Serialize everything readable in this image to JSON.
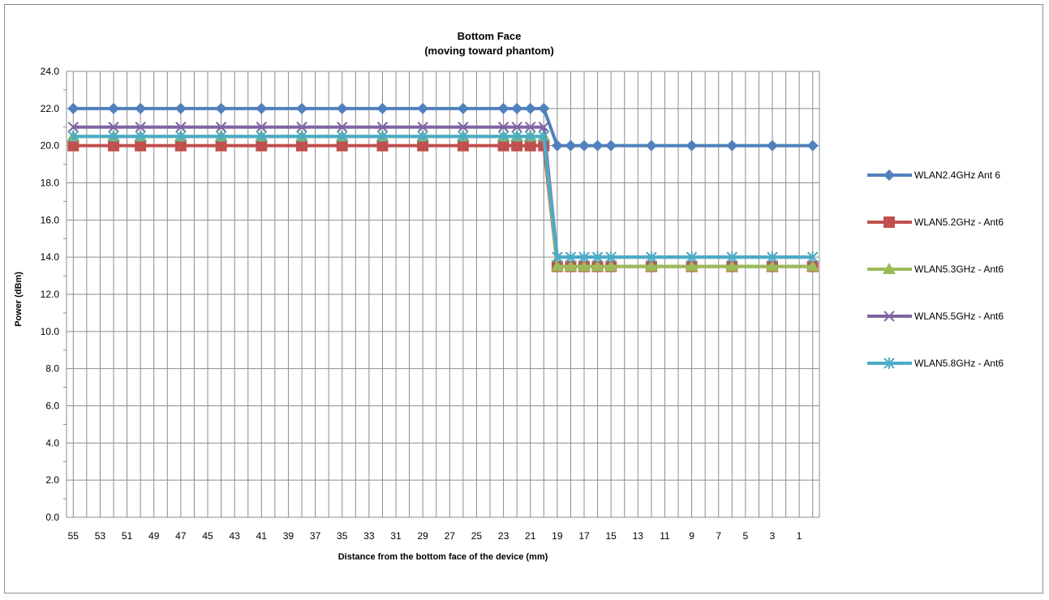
{
  "chart_data": {
    "type": "line",
    "title": "Bottom Face",
    "subtitle": "(moving toward phantom)",
    "xlabel": "Distance from the bottom face of the device (mm)",
    "ylabel": "Power (dBm)",
    "ylim": [
      0,
      24
    ],
    "y_ticks": [
      "0.0",
      "2.0",
      "4.0",
      "6.0",
      "8.0",
      "10.0",
      "12.0",
      "14.0",
      "16.0",
      "18.0",
      "20.0",
      "22.0",
      "24.0"
    ],
    "x_tick_labels": [
      "55",
      "53",
      "51",
      "49",
      "47",
      "45",
      "43",
      "41",
      "39",
      "37",
      "35",
      "33",
      "31",
      "29",
      "27",
      "25",
      "23",
      "21",
      "19",
      "17",
      "15",
      "13",
      "11",
      "9",
      "7",
      "5",
      "3",
      "1"
    ],
    "x": [
      55,
      52,
      50,
      47,
      44,
      41,
      38,
      35,
      32,
      29,
      26,
      23,
      22,
      21,
      20,
      19,
      18,
      17,
      16,
      15,
      12,
      9,
      6,
      3,
      0
    ],
    "grid": true,
    "legend_position": "right",
    "series": [
      {
        "name": "WLAN2.4GHz Ant 6",
        "color": "#4f81bd",
        "marker": "diamond",
        "values": [
          22,
          22,
          22,
          22,
          22,
          22,
          22,
          22,
          22,
          22,
          22,
          22,
          22,
          22,
          22,
          20,
          20,
          20,
          20,
          20,
          20,
          20,
          20,
          20,
          20
        ]
      },
      {
        "name": "WLAN5.2GHz - Ant6",
        "color": "#c0504d",
        "marker": "square",
        "values": [
          20,
          20,
          20,
          20,
          20,
          20,
          20,
          20,
          20,
          20,
          20,
          20,
          20,
          20,
          20,
          13.5,
          13.5,
          13.5,
          13.5,
          13.5,
          13.5,
          13.5,
          13.5,
          13.5,
          13.5
        ]
      },
      {
        "name": "WLAN5.3GHz - Ant6",
        "color": "#9bbb59",
        "marker": "triangle",
        "values": [
          20.5,
          20.5,
          20.5,
          20.5,
          20.5,
          20.5,
          20.5,
          20.5,
          20.5,
          20.5,
          20.5,
          20.5,
          20.5,
          20.5,
          20.5,
          13.5,
          13.5,
          13.5,
          13.5,
          13.5,
          13.5,
          13.5,
          13.5,
          13.5,
          13.5
        ]
      },
      {
        "name": "WLAN5.5GHz - Ant6",
        "color": "#8064a2",
        "marker": "x",
        "values": [
          21,
          21,
          21,
          21,
          21,
          21,
          21,
          21,
          21,
          21,
          21,
          21,
          21,
          21,
          21,
          14,
          14,
          14,
          14,
          14,
          14,
          14,
          14,
          14,
          14
        ]
      },
      {
        "name": "WLAN5.8GHz - Ant6",
        "color": "#4bacc6",
        "marker": "star",
        "values": [
          20.5,
          20.5,
          20.5,
          20.5,
          20.5,
          20.5,
          20.5,
          20.5,
          20.5,
          20.5,
          20.5,
          20.5,
          20.5,
          20.5,
          20.5,
          14,
          14,
          14,
          14,
          14,
          14,
          14,
          14,
          14,
          14
        ]
      }
    ]
  }
}
